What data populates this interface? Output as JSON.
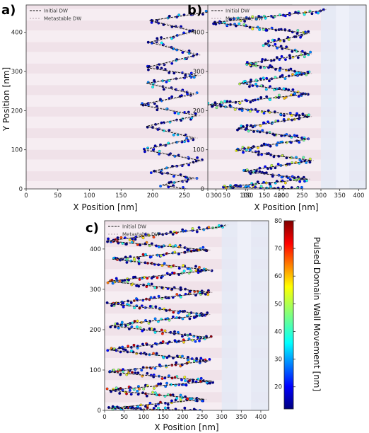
{
  "chart_data": [
    {
      "type": "scatter",
      "panel_label": "a)",
      "xlabel": "X Position [nm]",
      "ylabel": "Y Position [nm]",
      "xlim": [
        0,
        420
      ],
      "ylim": [
        0,
        470
      ],
      "xticks": [
        0,
        50,
        100,
        150,
        200,
        250,
        300,
        350,
        400
      ],
      "yticks": [
        0,
        100,
        200,
        300,
        400
      ],
      "legend": [
        "Initial DW",
        "Metastable DW"
      ],
      "legend_position": "top-left",
      "tips": [
        [
          10,
          215
        ],
        [
          45,
          200
        ],
        [
          100,
          185
        ],
        [
          160,
          190
        ],
        [
          215,
          180
        ],
        [
          270,
          190
        ],
        [
          310,
          190
        ],
        [
          375,
          195
        ],
        [
          430,
          195
        ]
      ],
      "valleys_x": [
        265,
        275,
        265,
        270,
        265,
        270,
        270,
        265
      ],
      "top": [
        [
          460,
          310
        ],
        [
          455,
          300
        ]
      ],
      "bottom": [
        [
          0,
          250
        ]
      ],
      "movement_range": [
        10,
        40
      ]
    },
    {
      "type": "scatter",
      "panel_label": "b)",
      "xlabel": "X Position [nm]",
      "ylabel": "",
      "xlim": [
        0,
        420
      ],
      "ylim": [
        0,
        470
      ],
      "xticks": [
        0,
        50,
        100,
        150,
        200,
        250,
        300,
        350,
        400
      ],
      "yticks": [
        0,
        100,
        200,
        300,
        400
      ],
      "legend": [
        "Initial DW",
        "Metastable DW"
      ],
      "legend_position": "top-left",
      "tips": [
        [
          5,
          40
        ],
        [
          45,
          95
        ],
        [
          100,
          75
        ],
        [
          155,
          80
        ],
        [
          215,
          0
        ],
        [
          270,
          85
        ],
        [
          320,
          100
        ],
        [
          370,
          150
        ],
        [
          425,
          15
        ]
      ],
      "valleys_x": [
        265,
        275,
        265,
        270,
        265,
        270,
        270,
        265
      ],
      "top": [
        [
          460,
          310
        ],
        [
          455,
          300
        ]
      ],
      "bottom": [
        [
          0,
          250
        ]
      ],
      "movement_range": [
        10,
        60
      ]
    },
    {
      "type": "scatter",
      "panel_label": "c)",
      "xlabel": "X Position [nm]",
      "ylabel": "",
      "xlim": [
        0,
        420
      ],
      "ylim": [
        0,
        470
      ],
      "xticks": [
        0,
        50,
        100,
        150,
        200,
        250,
        300,
        350,
        400
      ],
      "yticks": [
        0,
        100,
        200,
        300,
        400
      ],
      "legend": [
        "Initial DW",
        "Metastable DW"
      ],
      "legend_position": "top-left",
      "tips": [
        [
          5,
          10
        ],
        [
          50,
          10
        ],
        [
          95,
          10
        ],
        [
          150,
          10
        ],
        [
          210,
          15
        ],
        [
          265,
          10
        ],
        [
          320,
          10
        ],
        [
          375,
          20
        ],
        [
          420,
          5
        ]
      ],
      "valleys_x": [
        255,
        275,
        265,
        270,
        265,
        270,
        270,
        265
      ],
      "top": [
        [
          460,
          310
        ],
        [
          455,
          300
        ]
      ],
      "bottom": [
        [
          0,
          250
        ]
      ],
      "movement_range": [
        10,
        80
      ]
    }
  ],
  "colorbar": {
    "label": "Pulsed Domain Wall Movement [nm]",
    "ticks": [
      20,
      30,
      40,
      50,
      60,
      70,
      80
    ],
    "range": [
      12,
      80
    ],
    "colormap": "jet"
  }
}
